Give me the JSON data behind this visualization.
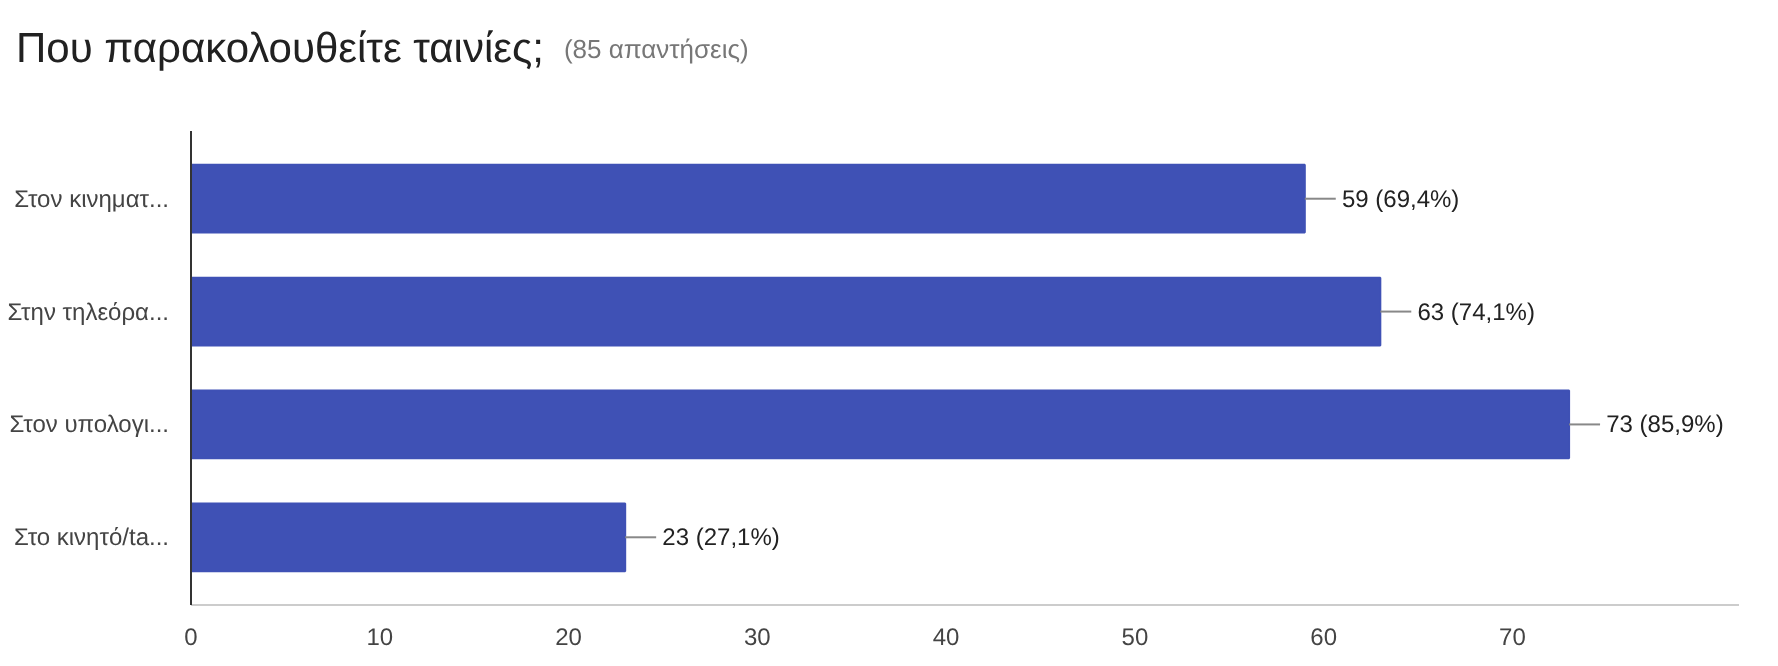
{
  "chart_data": {
    "type": "bar",
    "orientation": "horizontal",
    "title": "Που παρακολουθείτε ταινίες;",
    "subtitle": "(85 απαντήσεις)",
    "categories": [
      "Στον κινηματ...",
      "Στην τηλεόρα...",
      "Στον υπολογι...",
      "Στο κινητό/ta..."
    ],
    "values": [
      59,
      63,
      73,
      23
    ],
    "color": "#3f51b5",
    "value_labels": [
      "59 (69,4%)",
      "63 (74,1%)",
      "73 (85,9%)",
      "23 (27,1%)"
    ],
    "xlim": [
      0,
      82
    ],
    "xticks": [
      0,
      10,
      20,
      30,
      40,
      50,
      60,
      70
    ],
    "grid": false
  }
}
